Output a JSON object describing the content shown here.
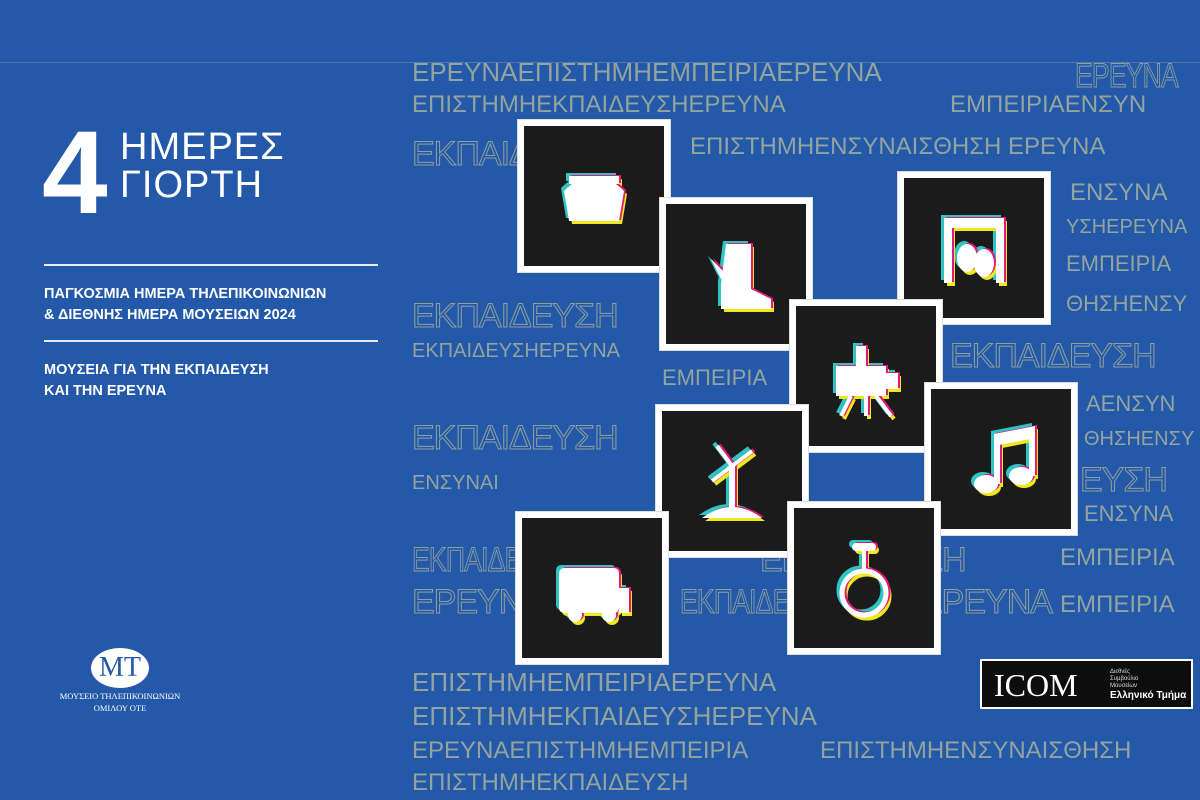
{
  "colors": {
    "background": "#2459a9",
    "word_outline": "#8fa09a",
    "card": "#1b1b1b",
    "cyan": "#2ec4c4",
    "magenta": "#e2197b",
    "yellow": "#f0e81e"
  },
  "headline": {
    "number": "4",
    "line1": "ΗΜΕΡΕΣ",
    "line2": "ΓΙΟΡΤΗ"
  },
  "subtitle": {
    "line1": "ΠΑΓΚΟΣΜΙΑ ΗΜΕΡΑ ΤΗΛΕΠΙΚΟΙΝΩΝΙΩΝ",
    "line2": "& ΔΙΕΘΝΗΣ ΗΜΕΡΑ ΜΟΥΣΕΙΩΝ 2024"
  },
  "theme": {
    "line1": "ΜΟΥΣΕΙΑ ΓΙΑ ΤΗΝ ΕΚΠΑΙΔΕΥΣΗ",
    "line2": "ΚΑΙ ΤΗΝ ΕΡΕΥΝΑ"
  },
  "museum_logo": {
    "mark": "ΜΤ",
    "line1": "ΜΟΥΣΕΙΟ ΤΗΛΕΠΙΚΟΙΝΩΝΙΩΝ",
    "line2": "ΟΜΙΛΟΥ ΟΤΕ"
  },
  "icom_logo": {
    "wordmark": "ICOM",
    "small1": "Διεθνές",
    "small2": "Συμβούλιο",
    "small3": "Μουσείων",
    "section": "Ελληνικό Τμήμα"
  },
  "background_words": [
    "ΕΡΕΥΝΑΕΠΙΣΤΗΜΗΕΜΠΕΙΡΙΑΕΡΕΥΝΑ",
    "ΕΡΕΥΝΑ",
    "ΕΠΙΣΤΗΜΗΕΚΠΑΙΔΕΥΣΗΕΡΕΥΝΑ",
    "ΕΜΠΕΙΡΙΑΕΝΣΥΝ",
    "ΕΚΠΑΙΔΕΥΣΗ",
    "ΕΠΙΣΤΗΜΗΕΝΣΥΝΑΙΣΘΗΣΗ ΕΡΕΥΝΑ",
    "ΕΝΣΥΝΑ",
    "ΕΚΠΑΙΔΕΥΣΗΕΡΕΥΝΑ",
    "ΥΣΗΕΡΕΥΝΑ",
    "ΕΡΕΥΝΑΕΠΙΣΤΗΜΗΕΜΠΕΙΡΙΑ",
    "ΕΜΠΕΙΡΙΑ",
    "ΕΚΠΑΙΔΕΥΣΗ",
    "ΘΗΣΗΕΝΣΥ",
    "ΕΜΠΕΙΡΙΑ",
    "ΕΚΠΑΙΔΕΥΣΗ",
    "ΕΠΙΣΤΗΜΗΕΚΠΑΙΔΕΥΣΗ",
    "ΑΕΝΣΥΝ",
    "ΕΚΠΑΙΔΕΥΣΗ",
    "ΘΗΣΗΕΝΣΥ",
    "ΕΜΠΕΙΡΙΑ",
    "ΕΥΣΗ",
    "ΕΝΣΥΝΑΙ",
    "ΕΝΣΥΝΑ",
    "ΕΚΠΑΙΔΕΥΣΗ",
    "ΕΚΠΑΙΔΕΥΣΗ",
    "ΕΡΕΥΝΑ",
    "ΕΚΠΑΙΔΕΥΣΗ",
    "ΕΡΕΥΝΑ",
    "ΕΜΠΕΙΡΙΑ",
    "ΕΠΙΣΤΗΜΗΕΝΣΥΝΑΙΣΘΗΣΗ",
    "ΕΠΙΣΤΗΜΗΕΜΠΕΙΡΙΑΕΡΕΥΝΑ",
    "ΕΠΙΣΤΗΜΗΕΚΠΑΙΔΕΥΣΗΕΡΕΥΝΑ"
  ],
  "cards": [
    {
      "icon": "telephone-icon"
    },
    {
      "icon": "boot-icon"
    },
    {
      "icon": "theatre-masks-icon"
    },
    {
      "icon": "film-camera-icon"
    },
    {
      "icon": "music-note-icon"
    },
    {
      "icon": "windmill-icon"
    },
    {
      "icon": "bus-icon"
    },
    {
      "icon": "unicycle-icon"
    }
  ]
}
